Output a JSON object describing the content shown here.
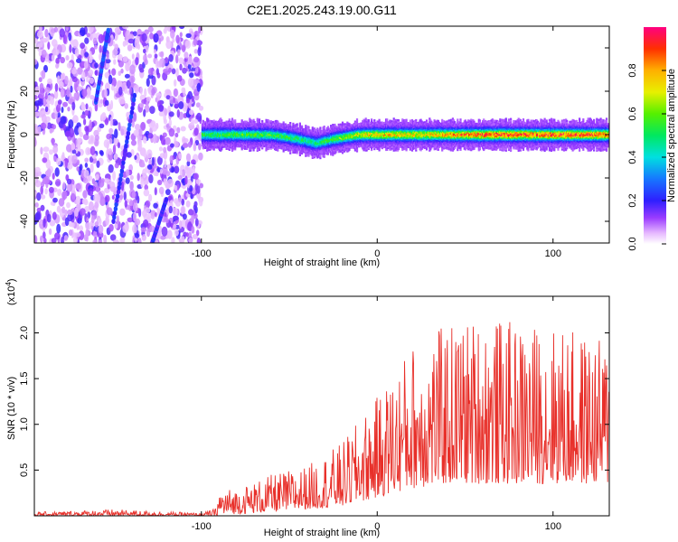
{
  "figure_title": "C2E1.2025.243.19.00.G11",
  "chart_data": [
    {
      "type": "heatmap",
      "title": "C2E1.2025.243.19.00.G11",
      "xlabel": "Height of straight line (km)",
      "ylabel": "Frequency (Hz)",
      "xlim": [
        -195,
        132
      ],
      "ylim": [
        -50,
        50
      ],
      "x_ticks": [
        -100,
        0,
        100
      ],
      "y_ticks": [
        -40,
        -20,
        0,
        20,
        40
      ],
      "x_tick_labels": [
        "-100",
        "0",
        "100"
      ],
      "y_tick_labels": [
        "-40",
        "-20",
        "0",
        "20",
        "40"
      ],
      "colorbar": {
        "label": "Normalized spectral amplitude",
        "range": [
          0,
          1
        ],
        "ticks": [
          0.0,
          0.2,
          0.4,
          0.6,
          0.8
        ],
        "tick_labels": [
          "0.0",
          "0.2",
          "0.4",
          "0.6",
          "0.8"
        ]
      },
      "noise_region_x": [
        -195,
        -100
      ],
      "streaks": [
        {
          "x": [
            -160,
            -153
          ],
          "y": [
            15,
            48
          ],
          "amplitude": 0.25
        },
        {
          "x": [
            -150,
            -138
          ],
          "y": [
            -40,
            18
          ],
          "amplitude": 0.22
        },
        {
          "x": [
            -128,
            -120
          ],
          "y": [
            -50,
            -30
          ],
          "amplitude": 0.2
        }
      ],
      "ridge": {
        "x": [
          -100,
          -80,
          -60,
          -45,
          -35,
          -25,
          -10,
          0,
          20,
          40,
          60,
          80,
          100,
          130
        ],
        "y": [
          0,
          0,
          0,
          -2,
          -4,
          -2,
          0,
          0,
          0,
          0,
          0,
          0,
          0,
          0
        ],
        "amplitude": [
          0.55,
          0.6,
          0.6,
          0.55,
          0.5,
          0.6,
          0.75,
          0.8,
          0.8,
          0.85,
          0.95,
          0.95,
          0.95,
          0.95
        ]
      }
    },
    {
      "type": "line",
      "xlabel": "Height of straight line (km)",
      "ylabel": "SNR (10 * v/v)",
      "y_multiplier": "(x10",
      "y_multiplier_exp": "4",
      "y_multiplier_close": ")",
      "xlim": [
        -195,
        132
      ],
      "ylim": [
        0,
        24000
      ],
      "x_ticks": [
        -100,
        0,
        100
      ],
      "y_ticks": [
        5000,
        10000,
        15000,
        20000
      ],
      "x_tick_labels": [
        "-100",
        "0",
        "100"
      ],
      "y_tick_labels": [
        "0.5",
        "1.0",
        "1.5",
        "2.0"
      ],
      "series": [
        {
          "name": "SNR",
          "color": "#e8302a",
          "envelope_x": [
            -195,
            -150,
            -100,
            -92,
            -90,
            -80,
            -60,
            -40,
            -20,
            0,
            20,
            40,
            60,
            80,
            100,
            132
          ],
          "envelope_lower": [
            0,
            0,
            0,
            0,
            100,
            200,
            400,
            700,
            1000,
            2000,
            3000,
            3500,
            3500,
            3500,
            3500,
            3500
          ],
          "envelope_upper": [
            400,
            700,
            300,
            800,
            3000,
            3000,
            4500,
            5500,
            8000,
            13000,
            19000,
            21000,
            22000,
            21000,
            21000,
            19000
          ]
        }
      ]
    }
  ]
}
